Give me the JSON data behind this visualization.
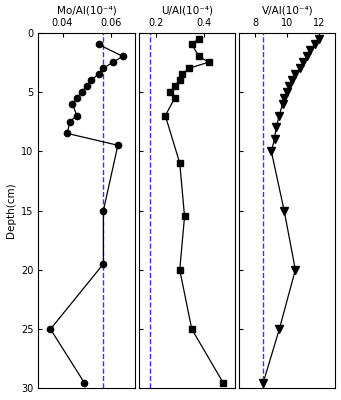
{
  "mo_depth": [
    1.0,
    2.0,
    2.5,
    3.0,
    3.5,
    4.0,
    4.5,
    5.0,
    5.5,
    6.0,
    7.0,
    7.5,
    8.5,
    9.5,
    15.0,
    19.5,
    25.0,
    29.5
  ],
  "mo_vals": [
    0.055,
    0.065,
    0.061,
    0.057,
    0.055,
    0.052,
    0.05,
    0.048,
    0.046,
    0.044,
    0.046,
    0.043,
    0.042,
    0.063,
    0.057,
    0.057,
    0.035,
    0.049
  ],
  "mo_dashed": 0.057,
  "mo_xlim": [
    0.03,
    0.07
  ],
  "mo_xticks": [
    0.04,
    0.06
  ],
  "mo_xtick_labels": [
    "0.04",
    "0.06"
  ],
  "u_depth": [
    0.5,
    1.0,
    2.0,
    2.5,
    3.0,
    3.5,
    4.0,
    4.5,
    5.0,
    5.5,
    7.0,
    11.0,
    15.5,
    20.0,
    25.0,
    29.5
  ],
  "u_vals": [
    0.38,
    0.35,
    0.38,
    0.42,
    0.34,
    0.31,
    0.3,
    0.28,
    0.26,
    0.28,
    0.24,
    0.3,
    0.32,
    0.3,
    0.35,
    0.48
  ],
  "u_dashed": 0.175,
  "u_xlim": [
    0.13,
    0.53
  ],
  "u_xticks": [
    0.2,
    0.4
  ],
  "u_xtick_labels": [
    "0.2",
    "0.4"
  ],
  "v_depth": [
    0.5,
    1.0,
    1.5,
    2.0,
    2.5,
    3.0,
    3.5,
    4.0,
    4.5,
    5.0,
    5.5,
    6.0,
    7.0,
    8.0,
    9.0,
    10.0,
    15.0,
    20.0,
    25.0,
    29.5
  ],
  "v_vals": [
    12.0,
    11.7,
    11.4,
    11.2,
    11.0,
    10.8,
    10.5,
    10.3,
    10.1,
    10.0,
    9.8,
    9.7,
    9.5,
    9.3,
    9.2,
    9.0,
    9.8,
    10.5,
    9.5,
    8.5
  ],
  "v_dashed": 8.5,
  "v_xlim": [
    7.0,
    13.0
  ],
  "v_xticks": [
    8,
    10,
    12
  ],
  "v_xtick_labels": [
    "8",
    "10",
    "12"
  ],
  "ylim": [
    30,
    0
  ],
  "yticks": [
    0,
    5,
    10,
    15,
    20,
    25,
    30
  ],
  "ylabel": "Depth(cm)",
  "titles": [
    "Mo/Al(10⁻⁴)",
    "U/Al(10⁻⁴)",
    "V/Al(10⁻⁴)"
  ],
  "dashed_color": "#3333FF",
  "line_color": "#000000",
  "marker_color": "#000000",
  "bg_color": "#ffffff",
  "marker_sizes": [
    4.5,
    5.0,
    5.5
  ],
  "linewidth": 0.9
}
